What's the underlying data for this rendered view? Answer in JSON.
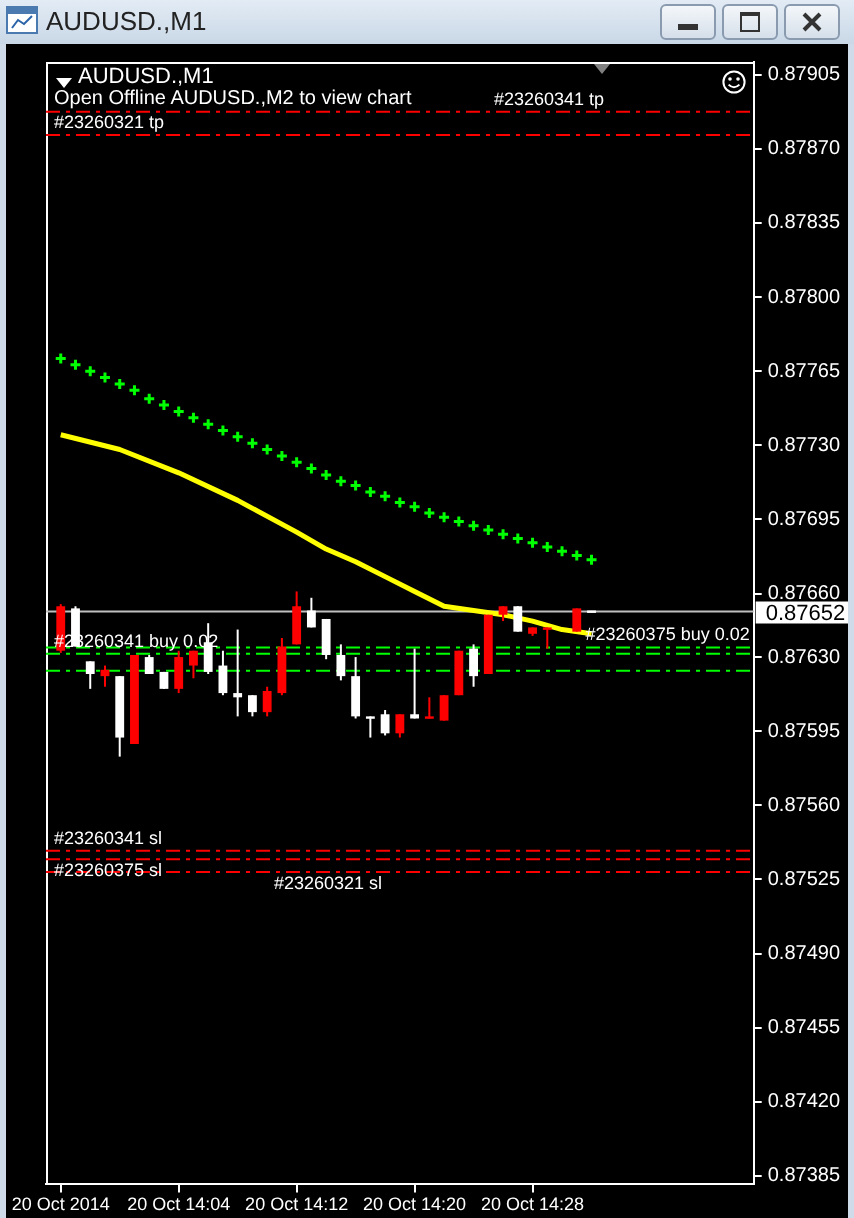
{
  "chart_data": {
    "type": "candlestick",
    "title": "AUDUSD.,M1",
    "annotations": [
      "Open Offline AUDUSD.,M2 to view chart"
    ],
    "x": [
      "2014-10-20T13:56",
      "2014-10-20T13:57",
      "2014-10-20T13:58",
      "2014-10-20T13:59",
      "2014-10-20T14:00",
      "2014-10-20T14:01",
      "2014-10-20T14:02",
      "2014-10-20T14:03",
      "2014-10-20T14:04",
      "2014-10-20T14:05",
      "2014-10-20T14:06",
      "2014-10-20T14:07",
      "2014-10-20T14:08",
      "2014-10-20T14:09",
      "2014-10-20T14:10",
      "2014-10-20T14:11",
      "2014-10-20T14:12",
      "2014-10-20T14:13",
      "2014-10-20T14:14",
      "2014-10-20T14:15",
      "2014-10-20T14:16",
      "2014-10-20T14:17",
      "2014-10-20T14:18",
      "2014-10-20T14:19",
      "2014-10-20T14:20",
      "2014-10-20T14:21",
      "2014-10-20T14:22",
      "2014-10-20T14:23",
      "2014-10-20T14:24",
      "2014-10-20T14:25",
      "2014-10-20T14:26",
      "2014-10-20T14:27",
      "2014-10-20T14:28",
      "2014-10-20T14:29",
      "2014-10-20T14:30",
      "2014-10-20T14:31",
      "2014-10-20T14:32"
    ],
    "ohlc": [
      [
        0.87633,
        0.87655,
        0.87632,
        0.87654
      ],
      [
        0.87653,
        0.87654,
        0.87635,
        0.87635
      ],
      [
        0.87628,
        0.87628,
        0.87615,
        0.87622
      ],
      [
        0.87621,
        0.87626,
        0.87616,
        0.87624
      ],
      [
        0.87621,
        0.87621,
        0.87583,
        0.87592
      ],
      [
        0.87589,
        0.87631,
        0.87589,
        0.87631
      ],
      [
        0.8763,
        0.87631,
        0.87622,
        0.87622
      ],
      [
        0.87623,
        0.87623,
        0.87615,
        0.87615
      ],
      [
        0.87615,
        0.87633,
        0.87613,
        0.8763
      ],
      [
        0.87626,
        0.87633,
        0.8762,
        0.87633
      ],
      [
        0.87637,
        0.87646,
        0.87622,
        0.87623
      ],
      [
        0.87626,
        0.87633,
        0.87612,
        0.87613
      ],
      [
        0.87613,
        0.87643,
        0.87602,
        0.87611
      ],
      [
        0.87612,
        0.87612,
        0.87602,
        0.87604
      ],
      [
        0.87604,
        0.87616,
        0.87602,
        0.87614
      ],
      [
        0.87613,
        0.87639,
        0.87612,
        0.87635
      ],
      [
        0.87636,
        0.87661,
        0.87636,
        0.87654
      ],
      [
        0.87652,
        0.87658,
        0.87644,
        0.87644
      ],
      [
        0.87648,
        0.87648,
        0.87629,
        0.87631
      ],
      [
        0.87631,
        0.87636,
        0.87619,
        0.87621
      ],
      [
        0.87621,
        0.8763,
        0.87601,
        0.87602
      ],
      [
        0.87602,
        0.87602,
        0.87592,
        0.87602
      ],
      [
        0.87603,
        0.87605,
        0.87593,
        0.87594
      ],
      [
        0.87594,
        0.87603,
        0.87592,
        0.87603
      ],
      [
        0.87603,
        0.87634,
        0.87601,
        0.87601
      ],
      [
        0.87601,
        0.87611,
        0.87601,
        0.87602
      ],
      [
        0.876,
        0.87612,
        0.876,
        0.87612
      ],
      [
        0.87612,
        0.87633,
        0.87612,
        0.87633
      ],
      [
        0.87634,
        0.87636,
        0.87616,
        0.87621
      ],
      [
        0.87622,
        0.8765,
        0.87622,
        0.8765
      ],
      [
        0.8765,
        0.87654,
        0.87647,
        0.87654
      ],
      [
        0.87654,
        0.87654,
        0.87642,
        0.87642
      ],
      [
        0.87641,
        0.87644,
        0.8764,
        0.87644
      ],
      [
        0.87644,
        0.87644,
        0.87634,
        0.87644
      ],
      null,
      [
        0.87642,
        0.87653,
        0.87642,
        0.87653
      ],
      [
        0.87652,
        0.87652,
        0.87652,
        0.87652
      ]
    ],
    "colors": [
      "#ff0000",
      "#ffffff",
      "#ffffff",
      "#ff0000",
      "#ffffff",
      "#ff0000",
      "#ffffff",
      "#ffffff",
      "#ff0000",
      "#ff0000",
      "#ffffff",
      "#ffffff",
      "#ffffff",
      "#ffffff",
      "#ff0000",
      "#ff0000",
      "#ff0000",
      "#ffffff",
      "#ffffff",
      "#ffffff",
      "#ffffff",
      "#ffffff",
      "#ffffff",
      "#ff0000",
      "#ffffff",
      "#ff0000",
      "#ff0000",
      "#ff0000",
      "#ffffff",
      "#ff0000",
      "#ff0000",
      "#ffffff",
      "#ff0000",
      "#ff0000",
      "#ff0000",
      "#ff0000",
      "#ffffff"
    ],
    "series": [
      {
        "type": "line",
        "color": "#ffff00",
        "x": [
          "2014-10-20T13:56",
          "2014-10-20T14:00",
          "2014-10-20T14:04",
          "2014-10-20T14:08",
          "2014-10-20T14:12",
          "2014-10-20T14:14",
          "2014-10-20T14:16",
          "2014-10-20T14:18",
          "2014-10-20T14:20",
          "2014-10-20T14:22",
          "2014-10-20T14:24",
          "2014-10-20T14:26",
          "2014-10-20T14:28",
          "2014-10-20T14:30",
          "2014-10-20T14:32"
        ],
        "values": [
          0.87735,
          0.87728,
          0.87717,
          0.87704,
          0.87689,
          0.87681,
          0.87675,
          0.87668,
          0.87661,
          0.87654,
          0.87652,
          0.8765,
          0.87647,
          0.87643,
          0.87641
        ]
      },
      {
        "type": "scatter",
        "color": "#00ff00",
        "marker": "cross",
        "values": [
          0.87771,
          0.87768,
          0.87765,
          0.87762,
          0.87759,
          0.87756,
          0.87752,
          0.87749,
          0.87746,
          0.87743,
          0.8774,
          0.87737,
          0.87734,
          0.87731,
          0.87728,
          0.87725,
          0.87722,
          0.87719,
          0.87716,
          0.87713,
          0.87711,
          0.87708,
          0.87706,
          0.87703,
          0.87701,
          0.87698,
          0.87696,
          0.87694,
          0.87692,
          0.8769,
          0.87688,
          0.87686,
          0.87684,
          0.87682,
          0.8768,
          0.87678,
          0.87676
        ]
      }
    ],
    "xlim": [
      "2014-10-20T13:55",
      "2014-10-20T14:43"
    ],
    "xticks": [
      {
        "value": "2014-10-20T13:56",
        "label": "20 Oct 2014"
      },
      {
        "value": "2014-10-20T14:04",
        "label": "20 Oct 14:04"
      },
      {
        "value": "2014-10-20T14:12",
        "label": "20 Oct 14:12"
      },
      {
        "value": "2014-10-20T14:20",
        "label": "20 Oct 14:20"
      },
      {
        "value": "2014-10-20T14:28",
        "label": "20 Oct 14:28"
      }
    ],
    "ylim": [
      0.87381,
      0.87911
    ],
    "yticks": [
      0.87905,
      {
        "value": 0.8787,
        "label": "0.87870"
      },
      0.87835,
      {
        "value": 0.878,
        "label": "0.87800"
      },
      0.87765,
      {
        "value": 0.8773,
        "label": "0.87730"
      },
      0.87695,
      {
        "value": 0.8766,
        "label": "0.87660"
      },
      {
        "value": 0.8763,
        "label": "0.87630"
      },
      0.87595,
      {
        "value": 0.8756,
        "label": "0.87560"
      },
      0.87525,
      {
        "value": 0.8749,
        "label": "0.87490"
      },
      0.87455,
      {
        "value": 0.8742,
        "label": "0.87420"
      },
      0.87385
    ],
    "ref_lines": [
      {
        "axis": "y",
        "value": 0.87888,
        "label": "#23260341 tp",
        "color": "#ff0000",
        "line_style": "dashed"
      },
      {
        "axis": "y",
        "value": 0.87877,
        "label": "#23260321 tp",
        "color": "#ff0000",
        "line_style": "dashed"
      },
      {
        "axis": "y",
        "value": 0.87635,
        "label": "#23260375 buy 0.02",
        "color": "#00ff00",
        "line_style": "dashed"
      },
      {
        "axis": "y",
        "value": 0.87632,
        "label": "#23260341 buy 0.02",
        "color": "#00ff00",
        "line_style": "dashed"
      },
      {
        "axis": "y",
        "value": 0.87624,
        "color": "#00ff00",
        "line_style": "dashed"
      },
      {
        "axis": "y",
        "value": 0.87539,
        "label": "#23260341 sl",
        "color": "#ff0000",
        "line_style": "dashed"
      },
      {
        "axis": "y",
        "value": 0.87535,
        "label": "#23260375 sl",
        "color": "#ff0000",
        "line_style": "dashed"
      },
      {
        "axis": "y",
        "value": 0.87529,
        "label": "#23260321 sl",
        "color": "#ff0000",
        "line_style": "dashed"
      },
      {
        "axis": "y",
        "value": 0.87652,
        "label": "0.87652",
        "color": "#c0c0c0",
        "line_style": "solid"
      }
    ]
  }
}
